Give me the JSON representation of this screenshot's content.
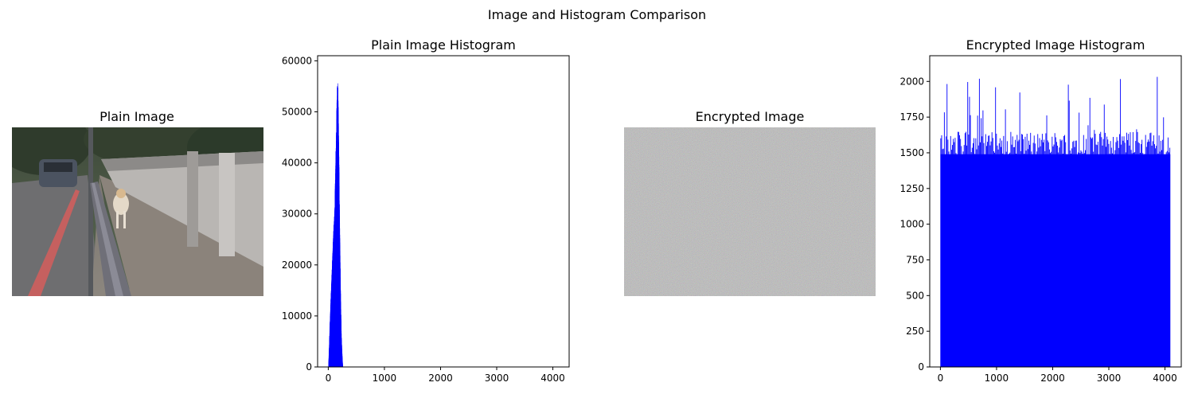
{
  "suptitle": "Image and Histogram Comparison",
  "colors": {
    "bar": "#0000ff",
    "axis": "#000000",
    "noise_base": "#7f7f7f"
  },
  "chart_data": [
    {
      "type": "image",
      "title": "Plain Image",
      "content": "street photo: sidewalk with a dog, a metal railing, a concrete wall and a parked car"
    },
    {
      "type": "bar",
      "title": "Plain Image Histogram",
      "xlim": [
        -190,
        4290
      ],
      "ylim": [
        0,
        61000
      ],
      "xticks": [
        0,
        1000,
        2000,
        3000,
        4000
      ],
      "yticks": [
        0,
        10000,
        20000,
        30000,
        40000,
        50000,
        60000
      ],
      "distribution": {
        "x_min": 0,
        "x_max": 255,
        "bin_width": 16,
        "profile": [
          [
            0,
            0
          ],
          [
            10,
            3000
          ],
          [
            30,
            10000
          ],
          [
            60,
            19000
          ],
          [
            90,
            27000
          ],
          [
            110,
            31000
          ],
          [
            130,
            42000
          ],
          [
            150,
            53000
          ],
          [
            160,
            57500
          ],
          [
            170,
            55000
          ],
          [
            185,
            43000
          ],
          [
            200,
            28000
          ],
          [
            215,
            15000
          ],
          [
            230,
            6000
          ],
          [
            245,
            2000
          ],
          [
            255,
            0
          ]
        ]
      }
    },
    {
      "type": "image",
      "title": "Encrypted Image",
      "content": "uniform grey random noise"
    },
    {
      "type": "bar",
      "title": "Encrypted Image Histogram",
      "xlim": [
        -190,
        4290
      ],
      "ylim": [
        0,
        2180
      ],
      "xticks": [
        0,
        1000,
        2000,
        3000,
        4000
      ],
      "yticks": [
        0,
        250,
        500,
        750,
        1000,
        1250,
        1500,
        1750,
        2000
      ],
      "distribution": {
        "x_min": 0,
        "x_max": 4095,
        "bin_width": 16,
        "baseline": 1490,
        "typical_peak": 1650,
        "max_peak": 2060
      }
    }
  ]
}
